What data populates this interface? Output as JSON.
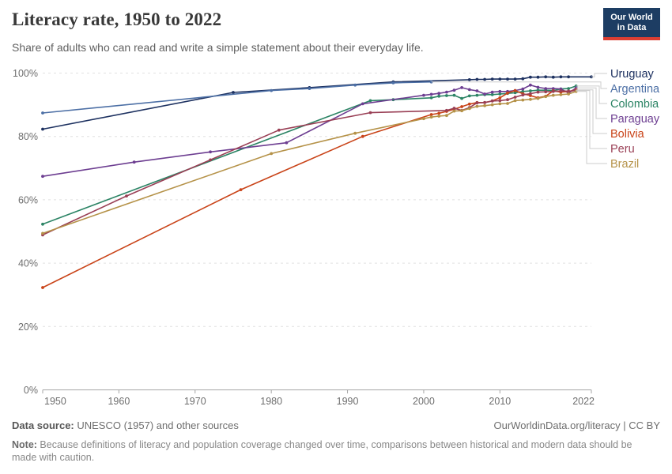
{
  "header": {
    "title": "Literacy rate, 1950 to 2022",
    "subtitle": "Share of adults who can read and write a simple statement about their everyday life."
  },
  "logo": {
    "line1": "Our World",
    "line2": "in Data",
    "bg_color": "#1d3d63",
    "bar_color": "#dc3e32"
  },
  "footer": {
    "source_label": "Data source:",
    "source_text": " UNESCO (1957) and other sources",
    "link": "OurWorldinData.org/literacy | CC BY",
    "note_label": "Note:",
    "note_text": " Because definitions of literacy and population coverage changed over time, comparisons between historical and modern data should be made with caution."
  },
  "chart_data": {
    "type": "line",
    "title": "Literacy rate, 1950 to 2022",
    "xlabel": "",
    "ylabel": "",
    "xlim": [
      1950,
      2022
    ],
    "ylim": [
      0,
      100
    ],
    "x_ticks": [
      1950,
      1960,
      1970,
      1980,
      1990,
      2000,
      2010,
      2022
    ],
    "y_tick_values": [
      0,
      20,
      40,
      60,
      80,
      100
    ],
    "y_tick_suffix": "%",
    "grid": "horizontal-dashed",
    "legend_position": "right-of-lines",
    "series": [
      {
        "name": "Uruguay",
        "color": "#1d3160",
        "points": [
          [
            1950,
            82.3
          ],
          [
            1975,
            93.9
          ],
          [
            1985,
            95.4
          ],
          [
            1996,
            97.2
          ],
          [
            2006,
            97.9
          ],
          [
            2007,
            98.0
          ],
          [
            2008,
            98.0
          ],
          [
            2009,
            98.1
          ],
          [
            2010,
            98.1
          ],
          [
            2011,
            98.1
          ],
          [
            2012,
            98.1
          ],
          [
            2013,
            98.2
          ],
          [
            2014,
            98.7
          ],
          [
            2015,
            98.7
          ],
          [
            2016,
            98.8
          ],
          [
            2017,
            98.7
          ],
          [
            2018,
            98.8
          ],
          [
            2019,
            98.8
          ],
          [
            2022,
            98.8
          ]
        ]
      },
      {
        "name": "Argentina",
        "color": "#4c6fa5",
        "points": [
          [
            1950,
            87.4
          ],
          [
            1980,
            94.5
          ],
          [
            1985,
            95.1
          ],
          [
            1991,
            96.2
          ],
          [
            1996,
            96.9
          ],
          [
            2001,
            97.2
          ]
        ]
      },
      {
        "name": "Colombia",
        "color": "#2c8465",
        "points": [
          [
            1950,
            52.3
          ],
          [
            1993,
            91.3
          ],
          [
            1996,
            91.6
          ],
          [
            2001,
            92.2
          ],
          [
            2002,
            92.7
          ],
          [
            2003,
            92.9
          ],
          [
            2004,
            93.0
          ],
          [
            2005,
            92.0
          ],
          [
            2006,
            92.8
          ],
          [
            2007,
            93.0
          ],
          [
            2008,
            93.2
          ],
          [
            2009,
            93.2
          ],
          [
            2010,
            93.4
          ],
          [
            2011,
            93.6
          ],
          [
            2012,
            93.8
          ],
          [
            2013,
            94.2
          ],
          [
            2014,
            94.4
          ],
          [
            2015,
            94.6
          ],
          [
            2016,
            94.6
          ],
          [
            2017,
            94.5
          ],
          [
            2018,
            95.0
          ],
          [
            2019,
            95.1
          ],
          [
            2020,
            95.9
          ]
        ]
      },
      {
        "name": "Paraguay",
        "color": "#6d3e91",
        "points": [
          [
            1950,
            67.4
          ],
          [
            1962,
            71.9
          ],
          [
            1972,
            75.1
          ],
          [
            1982,
            78.0
          ],
          [
            1992,
            90.3
          ],
          [
            2000,
            93.0
          ],
          [
            2001,
            93.3
          ],
          [
            2002,
            93.6
          ],
          [
            2003,
            94.0
          ],
          [
            2004,
            94.6
          ],
          [
            2005,
            95.4
          ],
          [
            2006,
            94.8
          ],
          [
            2007,
            94.4
          ],
          [
            2008,
            93.4
          ],
          [
            2009,
            94.0
          ],
          [
            2010,
            94.2
          ],
          [
            2011,
            94.2
          ],
          [
            2012,
            94.5
          ],
          [
            2013,
            95.0
          ],
          [
            2014,
            96.2
          ],
          [
            2015,
            95.5
          ],
          [
            2016,
            95.1
          ],
          [
            2017,
            95.1
          ],
          [
            2018,
            95.0
          ],
          [
            2019,
            93.7
          ],
          [
            2020,
            95.3
          ]
        ]
      },
      {
        "name": "Bolivia",
        "color": "#c94318",
        "points": [
          [
            1950,
            32.3
          ],
          [
            1976,
            63.2
          ],
          [
            1992,
            80.0
          ],
          [
            2001,
            86.9
          ],
          [
            2002,
            87.3
          ],
          [
            2003,
            87.9
          ],
          [
            2004,
            88.6
          ],
          [
            2005,
            89.4
          ],
          [
            2006,
            90.2
          ],
          [
            2007,
            90.7
          ],
          [
            2008,
            90.7
          ],
          [
            2009,
            91.2
          ],
          [
            2010,
            92.2
          ],
          [
            2011,
            93.7
          ],
          [
            2012,
            94.5
          ],
          [
            2013,
            93.5
          ],
          [
            2014,
            92.9
          ],
          [
            2015,
            92.2
          ],
          [
            2016,
            92.7
          ],
          [
            2017,
            94.4
          ],
          [
            2018,
            94.0
          ],
          [
            2019,
            94.2
          ],
          [
            2020,
            94.7
          ]
        ]
      },
      {
        "name": "Peru",
        "color": "#993f55",
        "points": [
          [
            1950,
            48.9
          ],
          [
            1961,
            61.2
          ],
          [
            1972,
            72.6
          ],
          [
            1981,
            82.0
          ],
          [
            1993,
            87.5
          ],
          [
            2003,
            88.2
          ],
          [
            2004,
            88.9
          ],
          [
            2005,
            88.2
          ],
          [
            2006,
            89.1
          ],
          [
            2007,
            90.6
          ],
          [
            2008,
            90.7
          ],
          [
            2009,
            91.2
          ],
          [
            2010,
            91.3
          ],
          [
            2011,
            91.6
          ],
          [
            2012,
            92.4
          ],
          [
            2013,
            93.1
          ],
          [
            2014,
            93.5
          ],
          [
            2015,
            94.0
          ],
          [
            2016,
            94.1
          ],
          [
            2017,
            94.2
          ],
          [
            2018,
            94.4
          ],
          [
            2019,
            94.3
          ],
          [
            2020,
            94.5
          ]
        ]
      },
      {
        "name": "Brazil",
        "color": "#b59248",
        "points": [
          [
            1950,
            49.4
          ],
          [
            1980,
            74.6
          ],
          [
            1991,
            81.0
          ],
          [
            2000,
            85.6
          ],
          [
            2001,
            86.1
          ],
          [
            2002,
            86.4
          ],
          [
            2003,
            86.6
          ],
          [
            2004,
            88.0
          ],
          [
            2005,
            88.1
          ],
          [
            2006,
            88.8
          ],
          [
            2007,
            89.5
          ],
          [
            2008,
            89.7
          ],
          [
            2009,
            90.0
          ],
          [
            2010,
            90.3
          ],
          [
            2011,
            90.4
          ],
          [
            2012,
            91.3
          ],
          [
            2013,
            91.5
          ],
          [
            2014,
            91.7
          ],
          [
            2015,
            92.0
          ],
          [
            2016,
            92.6
          ],
          [
            2017,
            93.0
          ],
          [
            2018,
            93.2
          ],
          [
            2019,
            93.4
          ],
          [
            2020,
            94.2
          ]
        ]
      }
    ]
  }
}
